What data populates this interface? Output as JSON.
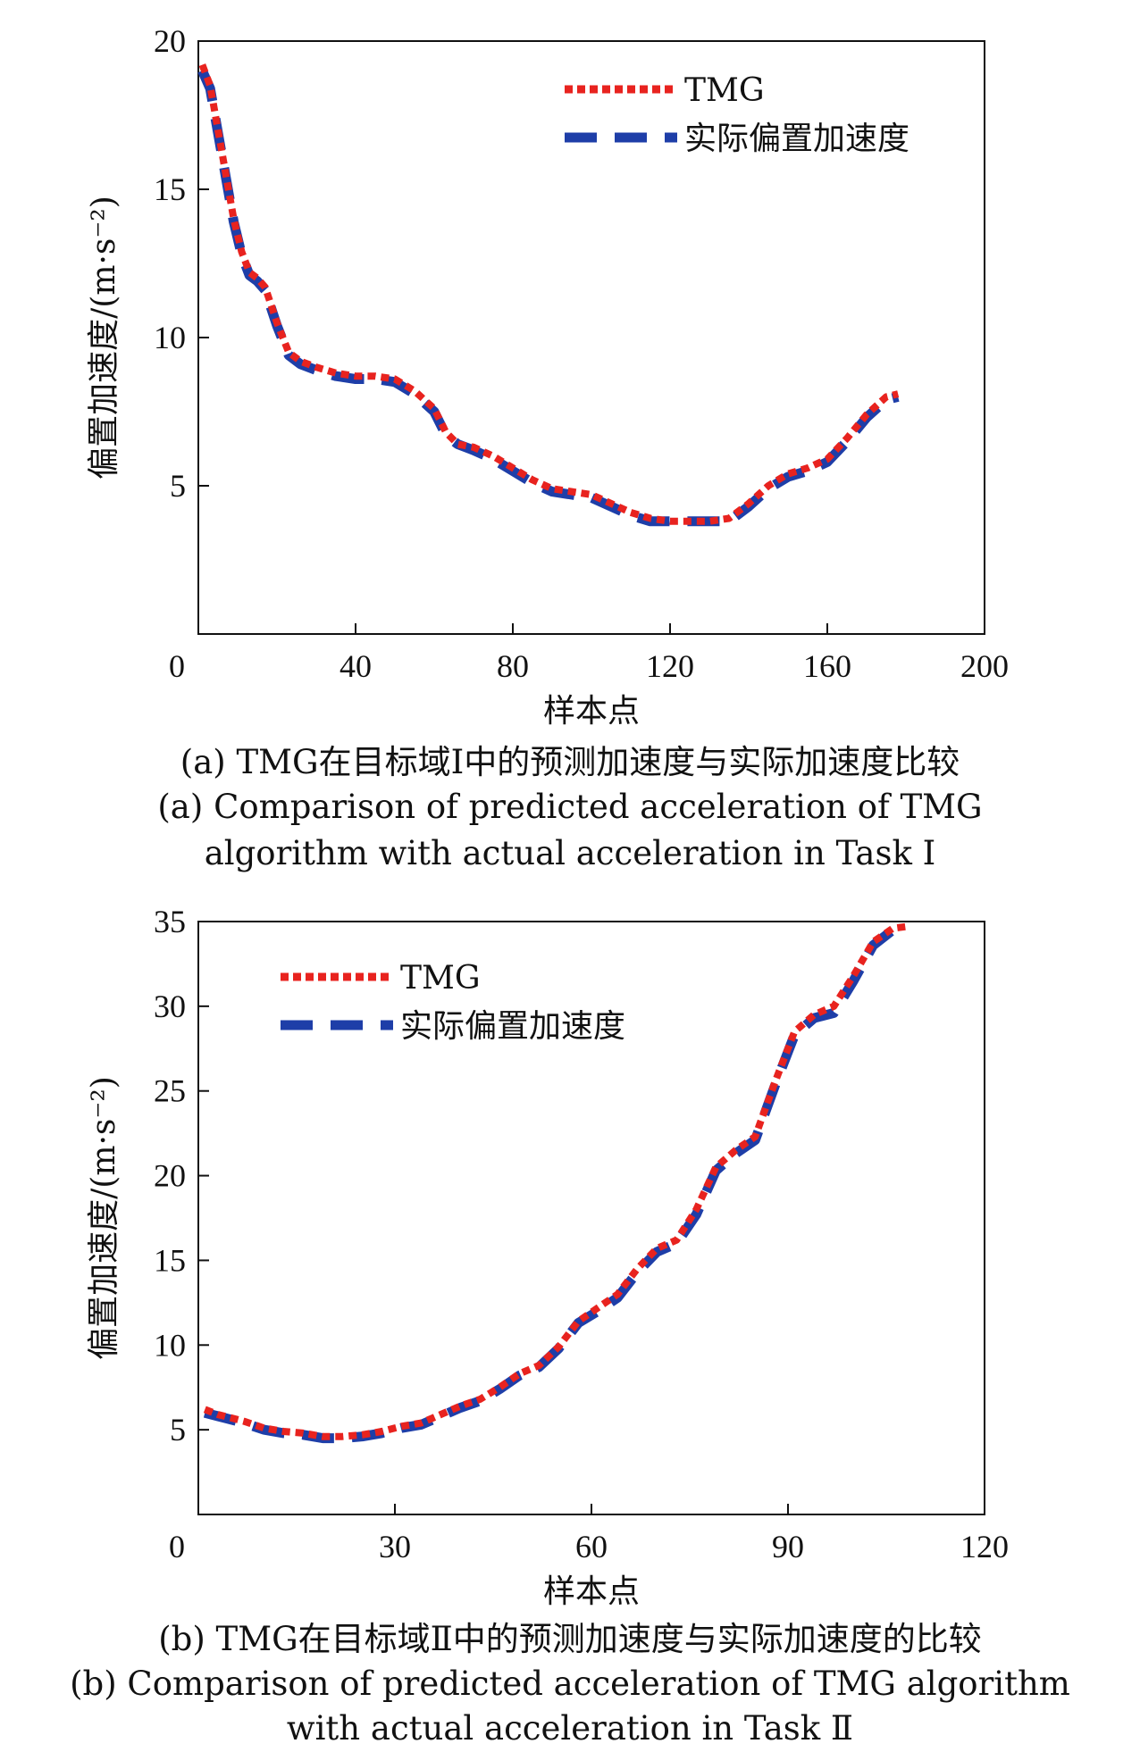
{
  "chart_data": [
    {
      "type": "line",
      "xlabel": "样本点",
      "ylabel": "偏置加速度/(m·s⁻²)",
      "xlim": [
        0,
        200
      ],
      "ylim": [
        0,
        20
      ],
      "x_ticks": [
        "0",
        "40",
        "80",
        "120",
        "160",
        "200"
      ],
      "y_ticks": [
        "5",
        "10",
        "15",
        "20"
      ],
      "legend_position": "top-center",
      "grid": false,
      "series": [
        {
          "name": "TMG",
          "style": "dotted",
          "color": "#e8231f",
          "x": [
            1,
            3,
            5,
            7,
            9,
            11,
            13,
            15,
            17,
            20,
            23,
            26,
            30,
            35,
            40,
            45,
            50,
            55,
            60,
            63,
            66,
            70,
            75,
            80,
            85,
            90,
            95,
            100,
            105,
            110,
            115,
            120,
            125,
            130,
            135,
            140,
            145,
            150,
            155,
            160,
            165,
            170,
            175,
            178
          ],
          "y": [
            19.2,
            18.5,
            17.0,
            15.5,
            14.0,
            12.9,
            12.2,
            12.0,
            11.7,
            10.5,
            9.5,
            9.2,
            9.0,
            8.8,
            8.7,
            8.7,
            8.6,
            8.2,
            7.6,
            6.8,
            6.4,
            6.3,
            6.0,
            5.6,
            5.2,
            4.9,
            4.8,
            4.7,
            4.4,
            4.1,
            3.9,
            3.8,
            3.8,
            3.8,
            3.9,
            4.4,
            5.0,
            5.4,
            5.6,
            5.9,
            6.6,
            7.4,
            8.0,
            8.1
          ]
        },
        {
          "name": "实际偏置加速度",
          "style": "dashed",
          "color": "#1e3ea8",
          "x": [
            1,
            3,
            5,
            7,
            9,
            11,
            13,
            15,
            17,
            20,
            23,
            26,
            30,
            35,
            40,
            45,
            50,
            55,
            60,
            63,
            66,
            70,
            75,
            80,
            85,
            90,
            95,
            100,
            105,
            110,
            115,
            120,
            125,
            130,
            135,
            140,
            145,
            150,
            155,
            160,
            165,
            170,
            175,
            178
          ],
          "y": [
            19.0,
            18.4,
            16.9,
            15.4,
            13.9,
            12.8,
            12.1,
            11.9,
            11.6,
            10.4,
            9.4,
            9.1,
            8.9,
            8.7,
            8.6,
            8.6,
            8.5,
            8.1,
            7.5,
            6.7,
            6.4,
            6.2,
            5.9,
            5.5,
            5.1,
            4.8,
            4.7,
            4.6,
            4.3,
            4.0,
            3.8,
            3.8,
            3.8,
            3.8,
            3.8,
            4.3,
            4.9,
            5.3,
            5.5,
            5.8,
            6.5,
            7.3,
            7.9,
            8.0
          ]
        }
      ]
    },
    {
      "type": "line",
      "xlabel": "样本点",
      "ylabel": "偏置加速度/(m·s⁻²)",
      "xlim": [
        0,
        120
      ],
      "ylim": [
        0,
        35
      ],
      "x_ticks": [
        "0",
        "30",
        "60",
        "90",
        "120"
      ],
      "y_ticks": [
        "5",
        "10",
        "15",
        "20",
        "25",
        "30",
        "35"
      ],
      "legend_position": "top-left",
      "grid": false,
      "series": [
        {
          "name": "TMG",
          "style": "dotted",
          "color": "#e8231f",
          "x": [
            1,
            3,
            5,
            7,
            10,
            13,
            16,
            19,
            22,
            25,
            28,
            31,
            34,
            37,
            40,
            43,
            46,
            49,
            52,
            55,
            58,
            61,
            64,
            67,
            70,
            73,
            76,
            79,
            82,
            85,
            88,
            91,
            94,
            97,
            100,
            103,
            106,
            108
          ],
          "y": [
            6.2,
            5.9,
            5.7,
            5.5,
            5.1,
            4.9,
            4.8,
            4.6,
            4.6,
            4.7,
            4.9,
            5.2,
            5.4,
            5.9,
            6.4,
            6.8,
            7.5,
            8.3,
            8.8,
            9.9,
            11.4,
            12.2,
            13.0,
            14.5,
            15.7,
            16.2,
            18.0,
            20.5,
            21.5,
            22.3,
            25.5,
            28.5,
            29.5,
            30.0,
            31.8,
            33.8,
            34.6,
            34.7
          ]
        },
        {
          "name": "实际偏置加速度",
          "style": "dashed",
          "color": "#1e3ea8",
          "x": [
            1,
            3,
            5,
            7,
            10,
            13,
            16,
            19,
            22,
            25,
            28,
            31,
            34,
            37,
            40,
            43,
            46,
            49,
            52,
            55,
            58,
            61,
            64,
            67,
            70,
            73,
            76,
            79,
            82,
            85,
            88,
            91,
            94,
            97,
            100,
            103,
            106,
            108
          ],
          "y": [
            6.0,
            5.8,
            5.6,
            5.4,
            5.0,
            4.8,
            4.7,
            4.5,
            4.5,
            4.6,
            4.8,
            5.1,
            5.3,
            5.8,
            6.3,
            6.7,
            7.4,
            8.2,
            8.7,
            9.8,
            11.3,
            12.0,
            12.8,
            14.3,
            15.5,
            16.0,
            17.7,
            20.3,
            21.3,
            22.1,
            25.3,
            28.3,
            29.3,
            29.6,
            31.5,
            33.6,
            34.5,
            34.6
          ]
        }
      ]
    }
  ],
  "captions": {
    "a_cn": "(a) TMG在目标域Ⅰ中的预测加速度与实际加速度比较",
    "a_en_line1": "(a) Comparison of predicted acceleration of TMG",
    "a_en_line2": "algorithm with actual acceleration in Task Ⅰ",
    "b_cn": "(b) TMG在目标域Ⅱ中的预测加速度与实际加速度的比较",
    "b_en_line1": "(b) Comparison of predicted acceleration of TMG algorithm",
    "b_en_line2": "with actual acceleration in Task Ⅱ"
  }
}
